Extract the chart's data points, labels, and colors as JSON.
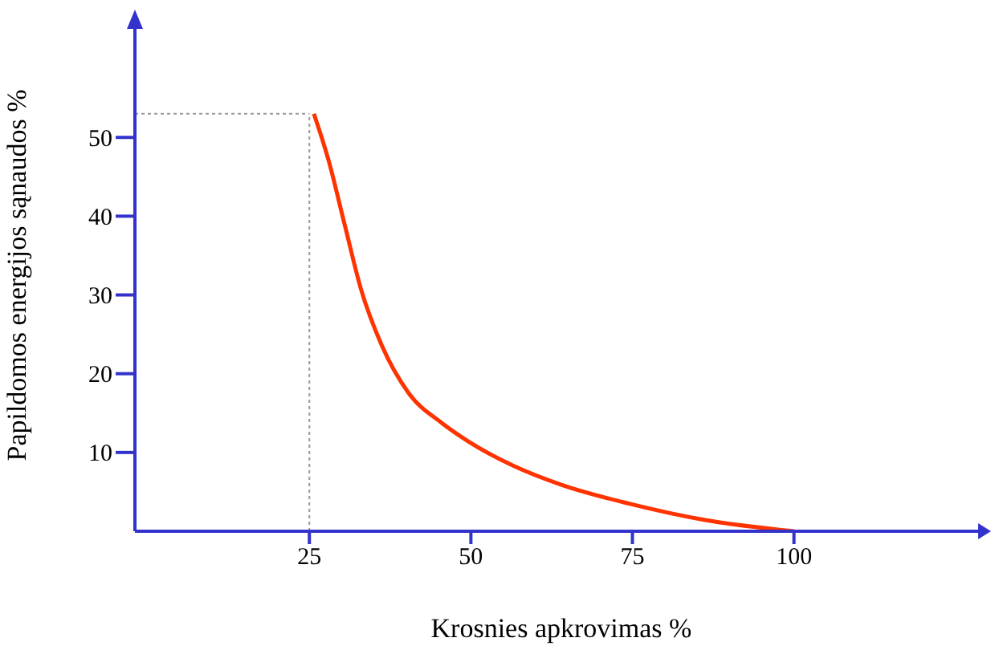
{
  "chart_data": {
    "type": "line",
    "xlabel": "Krosnies apkrovimas %",
    "ylabel": "Papildomos energijos sąnaudos %",
    "x": [
      25.7,
      28,
      30.5,
      33,
      36.2,
      40.4,
      45.4,
      49.6,
      56.6,
      64,
      74.5,
      86.4,
      100
    ],
    "series": [
      {
        "color": "#ff3300",
        "values": [
          53,
          47,
          38.8,
          30.7,
          23.6,
          17.5,
          13.8,
          11.4,
          8.3,
          5.9,
          3.5,
          1.4,
          0
        ]
      }
    ],
    "xlim": [
      -2,
      130
    ],
    "ylim": [
      0,
      65
    ],
    "xticks": [
      25,
      50,
      75,
      100
    ],
    "yticks": [
      10,
      20,
      30,
      40,
      50
    ],
    "ref_lines": [
      {
        "axis": "x",
        "value": 25,
        "color": "#999999",
        "line_style": "dotted"
      },
      {
        "axis": "y",
        "value": 53,
        "color": "#999999",
        "line_style": "dotted"
      }
    ],
    "grid": false,
    "legend": false,
    "marker": "none",
    "line_style": "solid"
  }
}
